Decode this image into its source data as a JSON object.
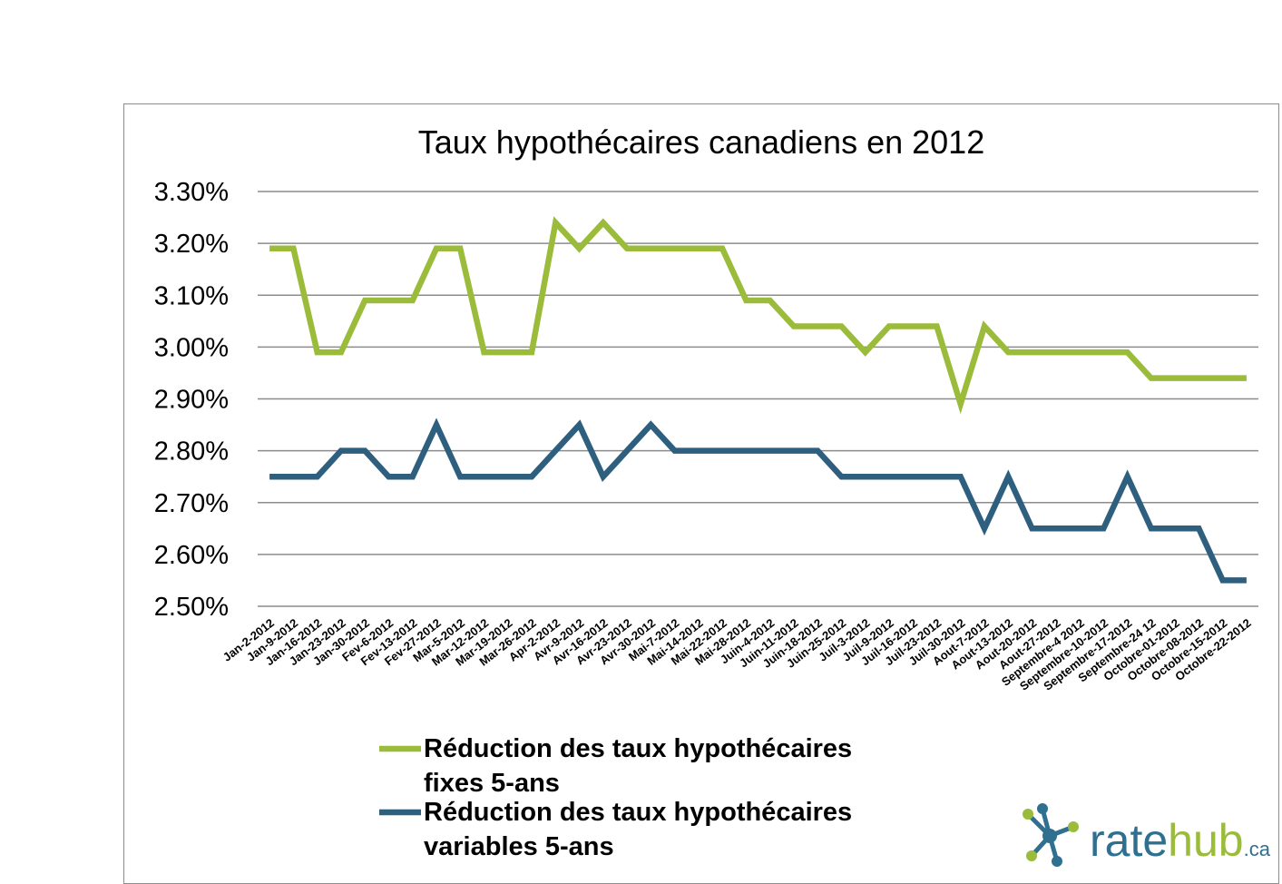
{
  "chart_data": {
    "type": "line",
    "title": "Taux hypothécaires canadiens en 2012",
    "xlabel": "",
    "ylabel": "",
    "ylim": [
      2.5,
      3.3
    ],
    "yticks": [
      "3.30%",
      "3.20%",
      "3.10%",
      "3.00%",
      "2.90%",
      "2.80%",
      "2.70%",
      "2.60%",
      "2.50%"
    ],
    "grid": true,
    "legend_position": "bottom",
    "categories": [
      "Jan-2-2012",
      "Jan-9-2012",
      "Jan-16-2012",
      "Jan-23-2012",
      "Jan-30-2012",
      "Fev-6-2012",
      "Fev-13-2012",
      "Fev-27-2012",
      "Mar-5-2012",
      "Mar-12-2012",
      "Mar-19-2012",
      "Mar-26-2012",
      "Apr-2-2012",
      "Avr-9-2012",
      "Avr-16-2012",
      "Avr-23-2012",
      "Avr-30-2012",
      "Mai-7-2012",
      "Mai-14-2012",
      "Mai-22-2012",
      "Mai-28-2012",
      "Juin-4-2012",
      "Juin-11-2012",
      "Juin-18-2012",
      "Juin-25-2012",
      "Juil-3-2012",
      "Juil-9-2012",
      "Juil-16-2012",
      "Juil-23-2012",
      "Juil-30-2012",
      "Aout-7-2012",
      "Aout-13-2012",
      "Aout-20-2012",
      "Aout-27-2012",
      "Septembre-4 2012",
      "Septembre-10-2012",
      "Septembre-17-2012",
      "Septembre-24 12",
      "Octobre-01-2012",
      "Octobre-08-2012",
      "Octobre-15-2012",
      "Octobre-22-2012"
    ],
    "series": [
      {
        "name": "Réduction des taux hypothécaires fixes 5-ans",
        "color": "#9bbb3a",
        "values": [
          3.19,
          3.19,
          2.99,
          2.99,
          3.09,
          3.09,
          3.09,
          3.19,
          3.19,
          2.99,
          2.99,
          2.99,
          3.24,
          3.19,
          3.24,
          3.19,
          3.19,
          3.19,
          3.19,
          3.19,
          3.09,
          3.09,
          3.04,
          3.04,
          3.04,
          2.99,
          3.04,
          3.04,
          3.04,
          2.89,
          3.04,
          2.99,
          2.99,
          2.99,
          2.99,
          2.99,
          2.99,
          2.94,
          2.94,
          2.94,
          2.94,
          2.94
        ]
      },
      {
        "name": "Réduction des taux hypothécaires variables 5-ans",
        "color": "#2e5f7f",
        "values": [
          2.75,
          2.75,
          2.75,
          2.8,
          2.8,
          2.75,
          2.75,
          2.85,
          2.75,
          2.75,
          2.75,
          2.75,
          2.8,
          2.85,
          2.75,
          2.8,
          2.85,
          2.8,
          2.8,
          2.8,
          2.8,
          2.8,
          2.8,
          2.8,
          2.75,
          2.75,
          2.75,
          2.75,
          2.75,
          2.75,
          2.65,
          2.75,
          2.65,
          2.65,
          2.65,
          2.65,
          2.75,
          2.65,
          2.65,
          2.65,
          2.55,
          2.55
        ]
      }
    ]
  },
  "logo": {
    "part1": "rate",
    "part2": "hub",
    "part3": ".ca",
    "icon": "molecule-icon",
    "color": "#2f6f8f",
    "accent": "#9bbb3a"
  }
}
